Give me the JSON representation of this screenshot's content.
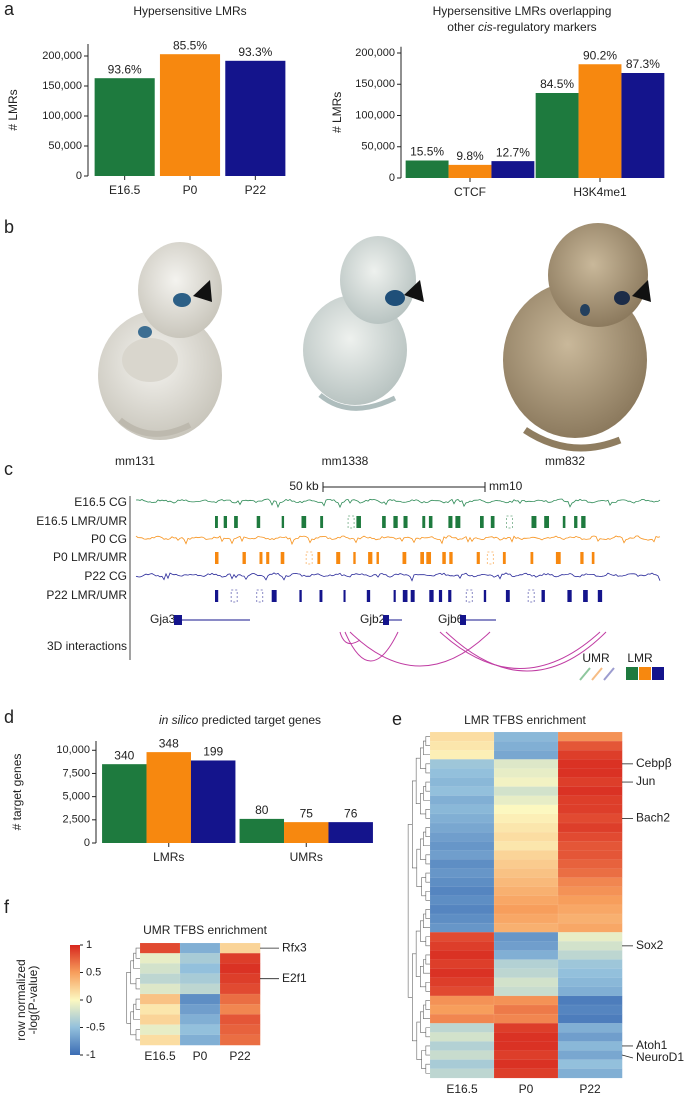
{
  "panel_labels": [
    "a",
    "b",
    "c",
    "d",
    "e",
    "f"
  ],
  "chart_data": [
    {
      "type": "bar",
      "title": "Hypersensitive LMRs",
      "ylabel": "# LMRs",
      "categories": [
        "E16.5",
        "P0",
        "P22"
      ],
      "category_colors": [
        "#1e7a3e",
        "#f7880f",
        "#14148c"
      ],
      "values": [
        163000,
        203000,
        192000
      ],
      "percent_labels": [
        "93.6%",
        "85.5%",
        "93.3%"
      ],
      "ylim": [
        0,
        220000
      ],
      "yticks": [
        0,
        {
          "value": 50000,
          "label": "50,000"
        },
        {
          "value": 100000,
          "label": "100,000"
        },
        {
          "value": 150000,
          "label": "150,000"
        },
        {
          "value": 200000,
          "label": "200,000"
        }
      ]
    },
    {
      "type": "bar",
      "title": "Hypersensitive LMRs overlapping",
      "title_line2": [
        "other ",
        "cis",
        "-regulatory markers"
      ],
      "ylabel": "# LMRs",
      "categories": [
        "CTCF",
        "H3K4me1"
      ],
      "series": [
        {
          "color": "#1e7a3e",
          "values": [
            28000,
            136000
          ],
          "percent_labels": [
            "15.5%",
            "84.5%"
          ]
        },
        {
          "color": "#f7880f",
          "values": [
            21000,
            182000
          ],
          "percent_labels": [
            "9.8%",
            "90.2%"
          ]
        },
        {
          "color": "#14148c",
          "values": [
            27000,
            168000
          ],
          "percent_labels": [
            "12.7%",
            "87.3%"
          ]
        }
      ],
      "ylim": [
        0,
        210000
      ],
      "yticks": [
        0,
        {
          "value": 50000,
          "label": "50,000"
        },
        {
          "value": 100000,
          "label": "100,000"
        },
        {
          "value": 150000,
          "label": "150,000"
        },
        {
          "value": 200000,
          "label": "200,000"
        }
      ]
    },
    {
      "type": "bar",
      "title": [
        "in silico",
        " predicted target genes"
      ],
      "ylabel": "# target genes",
      "categories": [
        "LMRs",
        "UMRs"
      ],
      "series": [
        {
          "color": "#1e7a3e",
          "values": [
            8500,
            2600
          ],
          "count_labels": [
            340,
            80
          ]
        },
        {
          "color": "#f7880f",
          "values": [
            9800,
            2250
          ],
          "count_labels": [
            348,
            75
          ]
        },
        {
          "color": "#14148c",
          "values": [
            8900,
            2250
          ],
          "count_labels": [
            199,
            76
          ]
        }
      ],
      "ylim": [
        0,
        11000
      ],
      "yticks": [
        0,
        {
          "value": 2500,
          "label": "2,500"
        },
        {
          "value": 5000,
          "label": "5,000"
        },
        {
          "value": 7500,
          "label": "7,500"
        },
        {
          "value": 10000,
          "label": "10,000"
        }
      ]
    },
    {
      "type": "heatmap",
      "title": "LMR TFBS enrichment",
      "columns": [
        "E16.5",
        "P0",
        "P22"
      ],
      "column_colors": [
        "#1e7a3e",
        "#f7880f",
        "#14148c"
      ],
      "zlim": [
        -1,
        1
      ],
      "colormap": [
        "#3b6cb4",
        "#93c0dc",
        "#fcf8c0",
        "#f79e5c",
        "#d7261e"
      ],
      "rows": [
        null,
        null,
        null,
        "Cebpβ",
        null,
        "Jun",
        null,
        null,
        null,
        "Bach2",
        null,
        null,
        null,
        null,
        null,
        null,
        null,
        null,
        null,
        null,
        null,
        null,
        null,
        "Sox2",
        null,
        null,
        null,
        null,
        null,
        null,
        null,
        null,
        null,
        null,
        "Atoh1",
        "NeuroD1",
        null,
        null
      ],
      "values": [
        [
          0.15,
          -0.55,
          0.55
        ],
        [
          0.1,
          -0.6,
          0.8
        ],
        [
          0.05,
          -0.65,
          0.9
        ],
        [
          -0.45,
          -0.15,
          0.95
        ],
        [
          -0.5,
          -0.1,
          0.95
        ],
        [
          -0.55,
          -0.05,
          0.9
        ],
        [
          -0.5,
          -0.2,
          0.95
        ],
        [
          -0.6,
          -0.1,
          0.9
        ],
        [
          -0.55,
          0.0,
          0.9
        ],
        [
          -0.6,
          0.05,
          0.85
        ],
        [
          -0.65,
          0.1,
          0.9
        ],
        [
          -0.7,
          0.15,
          0.85
        ],
        [
          -0.75,
          0.1,
          0.8
        ],
        [
          -0.7,
          0.2,
          0.8
        ],
        [
          -0.8,
          0.25,
          0.75
        ],
        [
          -0.75,
          0.3,
          0.7
        ],
        [
          -0.8,
          0.35,
          0.6
        ],
        [
          -0.85,
          0.4,
          0.55
        ],
        [
          -0.8,
          0.45,
          0.5
        ],
        [
          -0.85,
          0.5,
          0.45
        ],
        [
          -0.8,
          0.45,
          0.4
        ],
        [
          -0.75,
          0.4,
          0.45
        ],
        [
          0.85,
          -0.75,
          -0.1
        ],
        [
          0.9,
          -0.7,
          -0.2
        ],
        [
          0.95,
          -0.6,
          -0.3
        ],
        [
          0.9,
          -0.35,
          -0.45
        ],
        [
          0.95,
          -0.3,
          -0.5
        ],
        [
          0.9,
          -0.2,
          -0.55
        ],
        [
          0.85,
          -0.25,
          -0.6
        ],
        [
          0.55,
          0.55,
          -0.9
        ],
        [
          0.5,
          0.65,
          -0.85
        ],
        [
          0.6,
          0.6,
          -0.9
        ],
        [
          -0.3,
          0.9,
          -0.6
        ],
        [
          -0.2,
          0.95,
          -0.7
        ],
        [
          -0.35,
          0.95,
          -0.55
        ],
        [
          -0.25,
          0.9,
          -0.65
        ],
        [
          -0.4,
          0.95,
          -0.5
        ],
        [
          -0.3,
          0.9,
          -0.6
        ]
      ]
    },
    {
      "type": "heatmap",
      "title": "UMR TFBS enrichment",
      "columns": [
        "E16.5",
        "P0",
        "P22"
      ],
      "column_colors": [
        "#1e7a3e",
        "#f7880f",
        "#14148c"
      ],
      "zlim": [
        -1,
        1
      ],
      "colormap": [
        "#3b6cb4",
        "#93c0dc",
        "#fcf8c0",
        "#f79e5c",
        "#d7261e"
      ],
      "zticks": [
        1,
        0.5,
        0,
        -0.5,
        -1
      ],
      "colorbar_label": [
        "row normalized",
        "-log(P-value)"
      ],
      "rows": [
        "Rfx3",
        null,
        null,
        "E2f1",
        null,
        null,
        null,
        null,
        null,
        null
      ],
      "values": [
        [
          0.85,
          -0.6,
          0.2
        ],
        [
          -0.1,
          -0.4,
          0.9
        ],
        [
          -0.2,
          -0.5,
          0.95
        ],
        [
          -0.3,
          -0.4,
          0.9
        ],
        [
          -0.15,
          -0.3,
          0.85
        ],
        [
          0.3,
          -0.8,
          0.7
        ],
        [
          0.1,
          -0.7,
          0.6
        ],
        [
          0.2,
          -0.6,
          0.8
        ],
        [
          -0.1,
          -0.5,
          0.75
        ],
        [
          0.15,
          -0.6,
          0.7
        ]
      ]
    }
  ],
  "embryos": {
    "labels": [
      "mm131",
      "mm1338",
      "mm832"
    ]
  },
  "genome_track": {
    "scale_label": "50 kb",
    "assembly": "mm10",
    "tracks": [
      {
        "name": "E16.5 CG",
        "color": "#2e8b57"
      },
      {
        "name": "E16.5 LMR/UMR",
        "color": "#1e7a3e"
      },
      {
        "name": "P0 CG",
        "color": "#f7931e"
      },
      {
        "name": "P0 LMR/UMR",
        "color": "#f7880f"
      },
      {
        "name": "P22 CG",
        "color": "#2a2a9a"
      },
      {
        "name": "P22 LMR/UMR",
        "color": "#14148c"
      }
    ],
    "genes": [
      "Gja3",
      "Gjb2",
      "Gjb6"
    ],
    "interactions_label": "3D interactions",
    "legend": [
      "UMR",
      "LMR"
    ]
  }
}
